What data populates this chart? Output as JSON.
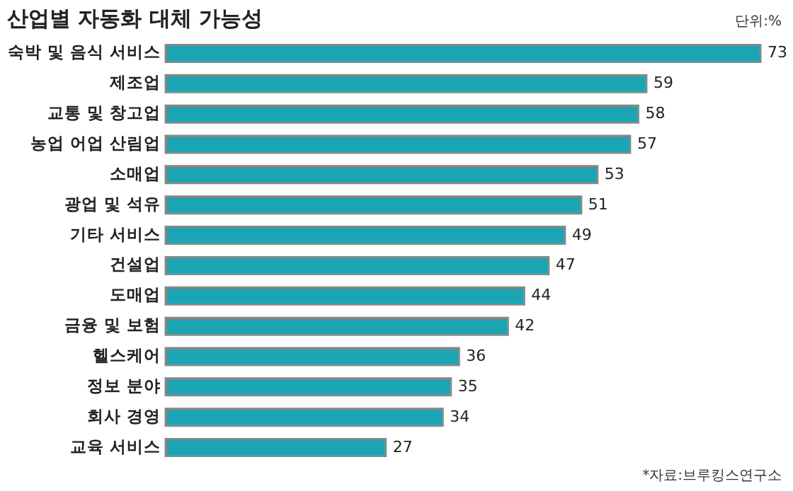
{
  "chart_data": {
    "type": "bar",
    "orientation": "horizontal",
    "title": "산업별 자동화 대체 가능성",
    "categories": [
      "숙박 및 음식 서비스",
      "제조업",
      "교통 및 창고업",
      "농업 어업 산림업",
      "소매업",
      "광업 및 석유",
      "기타 서비스",
      "건설업",
      "도매업",
      "금융 및 보험",
      "헬스케어",
      "정보 분야",
      "회사 경영",
      "교육 서비스"
    ],
    "values": [
      73,
      59,
      58,
      57,
      53,
      51,
      49,
      47,
      44,
      42,
      36,
      35,
      34,
      27
    ],
    "color": "#1ba5b3",
    "data_labels": true,
    "annotations": [
      "단위:%",
      "*자료:브루킹스연구소"
    ]
  }
}
